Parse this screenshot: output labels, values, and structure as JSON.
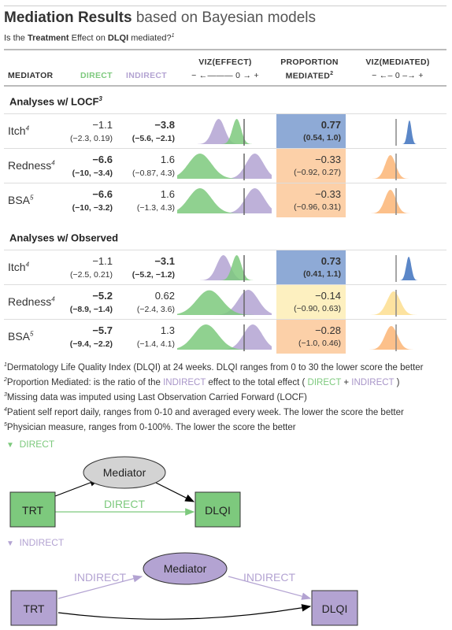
{
  "title_bold": "Mediation Results",
  "title_rest": "based on Bayesian models",
  "subtitle": {
    "pre": "Is the ",
    "b1": "Treatment",
    "mid": " Effect on ",
    "b2": "DLQI",
    "post": " mediated?",
    "sup": "1"
  },
  "headers": {
    "mediator": "MEDIATOR",
    "direct": "DIRECT",
    "indirect": "INDIRECT",
    "viz_effect": "VIZ(EFFECT)",
    "viz_effect_axis": "− ←——— 0 → +",
    "proportion": "PROPORTION",
    "mediated": "MEDIATED",
    "mediated_sup": "2",
    "viz_mediated": "VIZ(MEDIATED)",
    "viz_mediated_axis": "− ←– 0 –→ +"
  },
  "colors": {
    "direct": "#7dc97d",
    "indirect": "#b3a3d2",
    "blue": "#8eaad6",
    "orange": "#fcd0a8",
    "yellow": "#fdf0c0"
  },
  "groups": [
    {
      "label": "Analyses w/ LOCF",
      "sup": "3",
      "rows": [
        {
          "name": "Itch",
          "sup": "4",
          "direct": "−1.1",
          "direct_ci": "(−2.3, 0.19)",
          "direct_bold": false,
          "indirect": "−3.8",
          "indirect_ci": "(−5.6, −2.1)",
          "indirect_bold": true,
          "prop": "0.77",
          "prop_ci": "(0.54, 1.0)",
          "prop_bold": true,
          "prop_color": "blue",
          "dir_mean": -1.1,
          "dir_sd": 0.65,
          "ind_mean": -3.8,
          "ind_sd": 0.9,
          "med_mean": 0.77,
          "med_sd": 0.12,
          "med_color": "#5b87c8"
        },
        {
          "name": "Redness",
          "sup": "4",
          "direct": "−6.6",
          "direct_ci": "(−10, −3.4)",
          "direct_bold": true,
          "indirect": "1.6",
          "indirect_ci": "(−0.87, 4.3)",
          "indirect_bold": false,
          "prop": "−0.33",
          "prop_ci": "(−0.92, 0.27)",
          "prop_bold": false,
          "prop_color": "orange",
          "dir_mean": -6.6,
          "dir_sd": 1.7,
          "ind_mean": 1.6,
          "ind_sd": 1.3,
          "med_mean": -0.33,
          "med_sd": 0.3,
          "med_color": "#fcc08a"
        },
        {
          "name": "BSA",
          "sup": "5",
          "direct": "−6.6",
          "direct_ci": "(−10, −3.2)",
          "direct_bold": true,
          "indirect": "1.6",
          "indirect_ci": "(−1.3, 4.3)",
          "indirect_bold": false,
          "prop": "−0.33",
          "prop_ci": "(−0.96, 0.31)",
          "prop_bold": false,
          "prop_color": "orange",
          "dir_mean": -6.6,
          "dir_sd": 1.7,
          "ind_mean": 1.6,
          "ind_sd": 1.4,
          "med_mean": -0.33,
          "med_sd": 0.32,
          "med_color": "#fcc08a"
        }
      ]
    },
    {
      "label": "Analyses w/ Observed",
      "sup": "",
      "rows": [
        {
          "name": "Itch",
          "sup": "4",
          "direct": "−1.1",
          "direct_ci": "(−2.5, 0.21)",
          "direct_bold": false,
          "indirect": "−3.1",
          "indirect_ci": "(−5.2, −1.2)",
          "indirect_bold": true,
          "prop": "0.73",
          "prop_ci": "(0.41, 1.1)",
          "prop_bold": true,
          "prop_color": "blue",
          "dir_mean": -1.1,
          "dir_sd": 0.7,
          "ind_mean": -3.1,
          "ind_sd": 1.0,
          "med_mean": 0.73,
          "med_sd": 0.15,
          "med_color": "#5b87c8"
        },
        {
          "name": "Redness",
          "sup": "4",
          "direct": "−5.2",
          "direct_ci": "(−8.9, −1.4)",
          "direct_bold": true,
          "indirect": "0.62",
          "indirect_ci": "(−2.4, 3.6)",
          "indirect_bold": false,
          "prop": "−0.14",
          "prop_ci": "(−0.90, 0.63)",
          "prop_bold": false,
          "prop_color": "yellow",
          "dir_mean": -5.2,
          "dir_sd": 1.9,
          "ind_mean": 0.62,
          "ind_sd": 1.5,
          "med_mean": -0.14,
          "med_sd": 0.38,
          "med_color": "#fde3a0"
        },
        {
          "name": "BSA",
          "sup": "5",
          "direct": "−5.7",
          "direct_ci": "(−9.4, −2.2)",
          "direct_bold": true,
          "indirect": "1.3",
          "indirect_ci": "(−1.4, 4.1)",
          "indirect_bold": false,
          "prop": "−0.28",
          "prop_ci": "(−1.0, 0.46)",
          "prop_bold": false,
          "prop_color": "orange",
          "dir_mean": -5.7,
          "dir_sd": 1.8,
          "ind_mean": 1.3,
          "ind_sd": 1.4,
          "med_mean": -0.28,
          "med_sd": 0.36,
          "med_color": "#fcc08a"
        }
      ]
    }
  ],
  "footnotes": [
    {
      "sup": "1",
      "text": "Dermatology Life Quality Index (DLQI) at 24 weeks. DLQI ranges from 0 to 30 the lower score the better"
    },
    {
      "sup": "2",
      "pre": "Proportion Mediated: is the ratio of the ",
      "ind1": "INDIRECT",
      "mid": " effect to the total effect ( ",
      "dir": "DIRECT",
      "plus": " + ",
      "ind2": "INDIRECT",
      "post": " )"
    },
    {
      "sup": "3",
      "text": "Missing data was imputed using Last Observation Carried Forward (LOCF)"
    },
    {
      "sup": "4",
      "text": "Patient self report daily, ranges from 0-10 and averaged every week. The lower the score the better"
    },
    {
      "sup": "5",
      "text": "Physician measure, ranges from 0-100%. The lower the score the better"
    }
  ],
  "direct_section": {
    "toggle": "▼",
    "label": "DIRECT",
    "trt": "TRT",
    "mediator": "Mediator",
    "dlqi": "DLQI",
    "edge": "DIRECT"
  },
  "indirect_section": {
    "toggle": "▼",
    "label": "INDIRECT",
    "trt": "TRT",
    "mediator": "Mediator",
    "dlqi": "DLQI",
    "edge1": "INDIRECT",
    "edge2": "INDIRECT"
  }
}
